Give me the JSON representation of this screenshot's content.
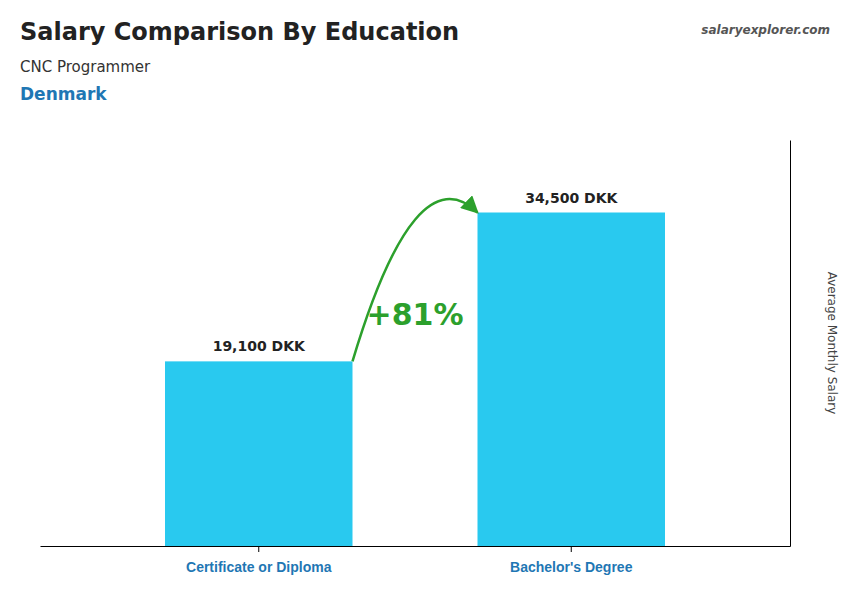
{
  "chart_data": {
    "type": "bar",
    "title": "Salary Comparison By Education",
    "subtitle": [
      "CNC Programmer",
      "Denmark"
    ],
    "annotations": [
      "+81%",
      "salaryexplorer.com"
    ],
    "ylabel": "Average Monthly Salary",
    "categories": [
      "Certificate or Diploma",
      "Bachelor's Degree"
    ],
    "values": [
      19100,
      34500
    ],
    "value_labels": [
      "19,100 DKK",
      "34,500 DKK"
    ],
    "data_labels": true,
    "color": "#29C9EF",
    "ylim": [
      0,
      42000
    ],
    "tick_labels": "x",
    "grid": false
  }
}
